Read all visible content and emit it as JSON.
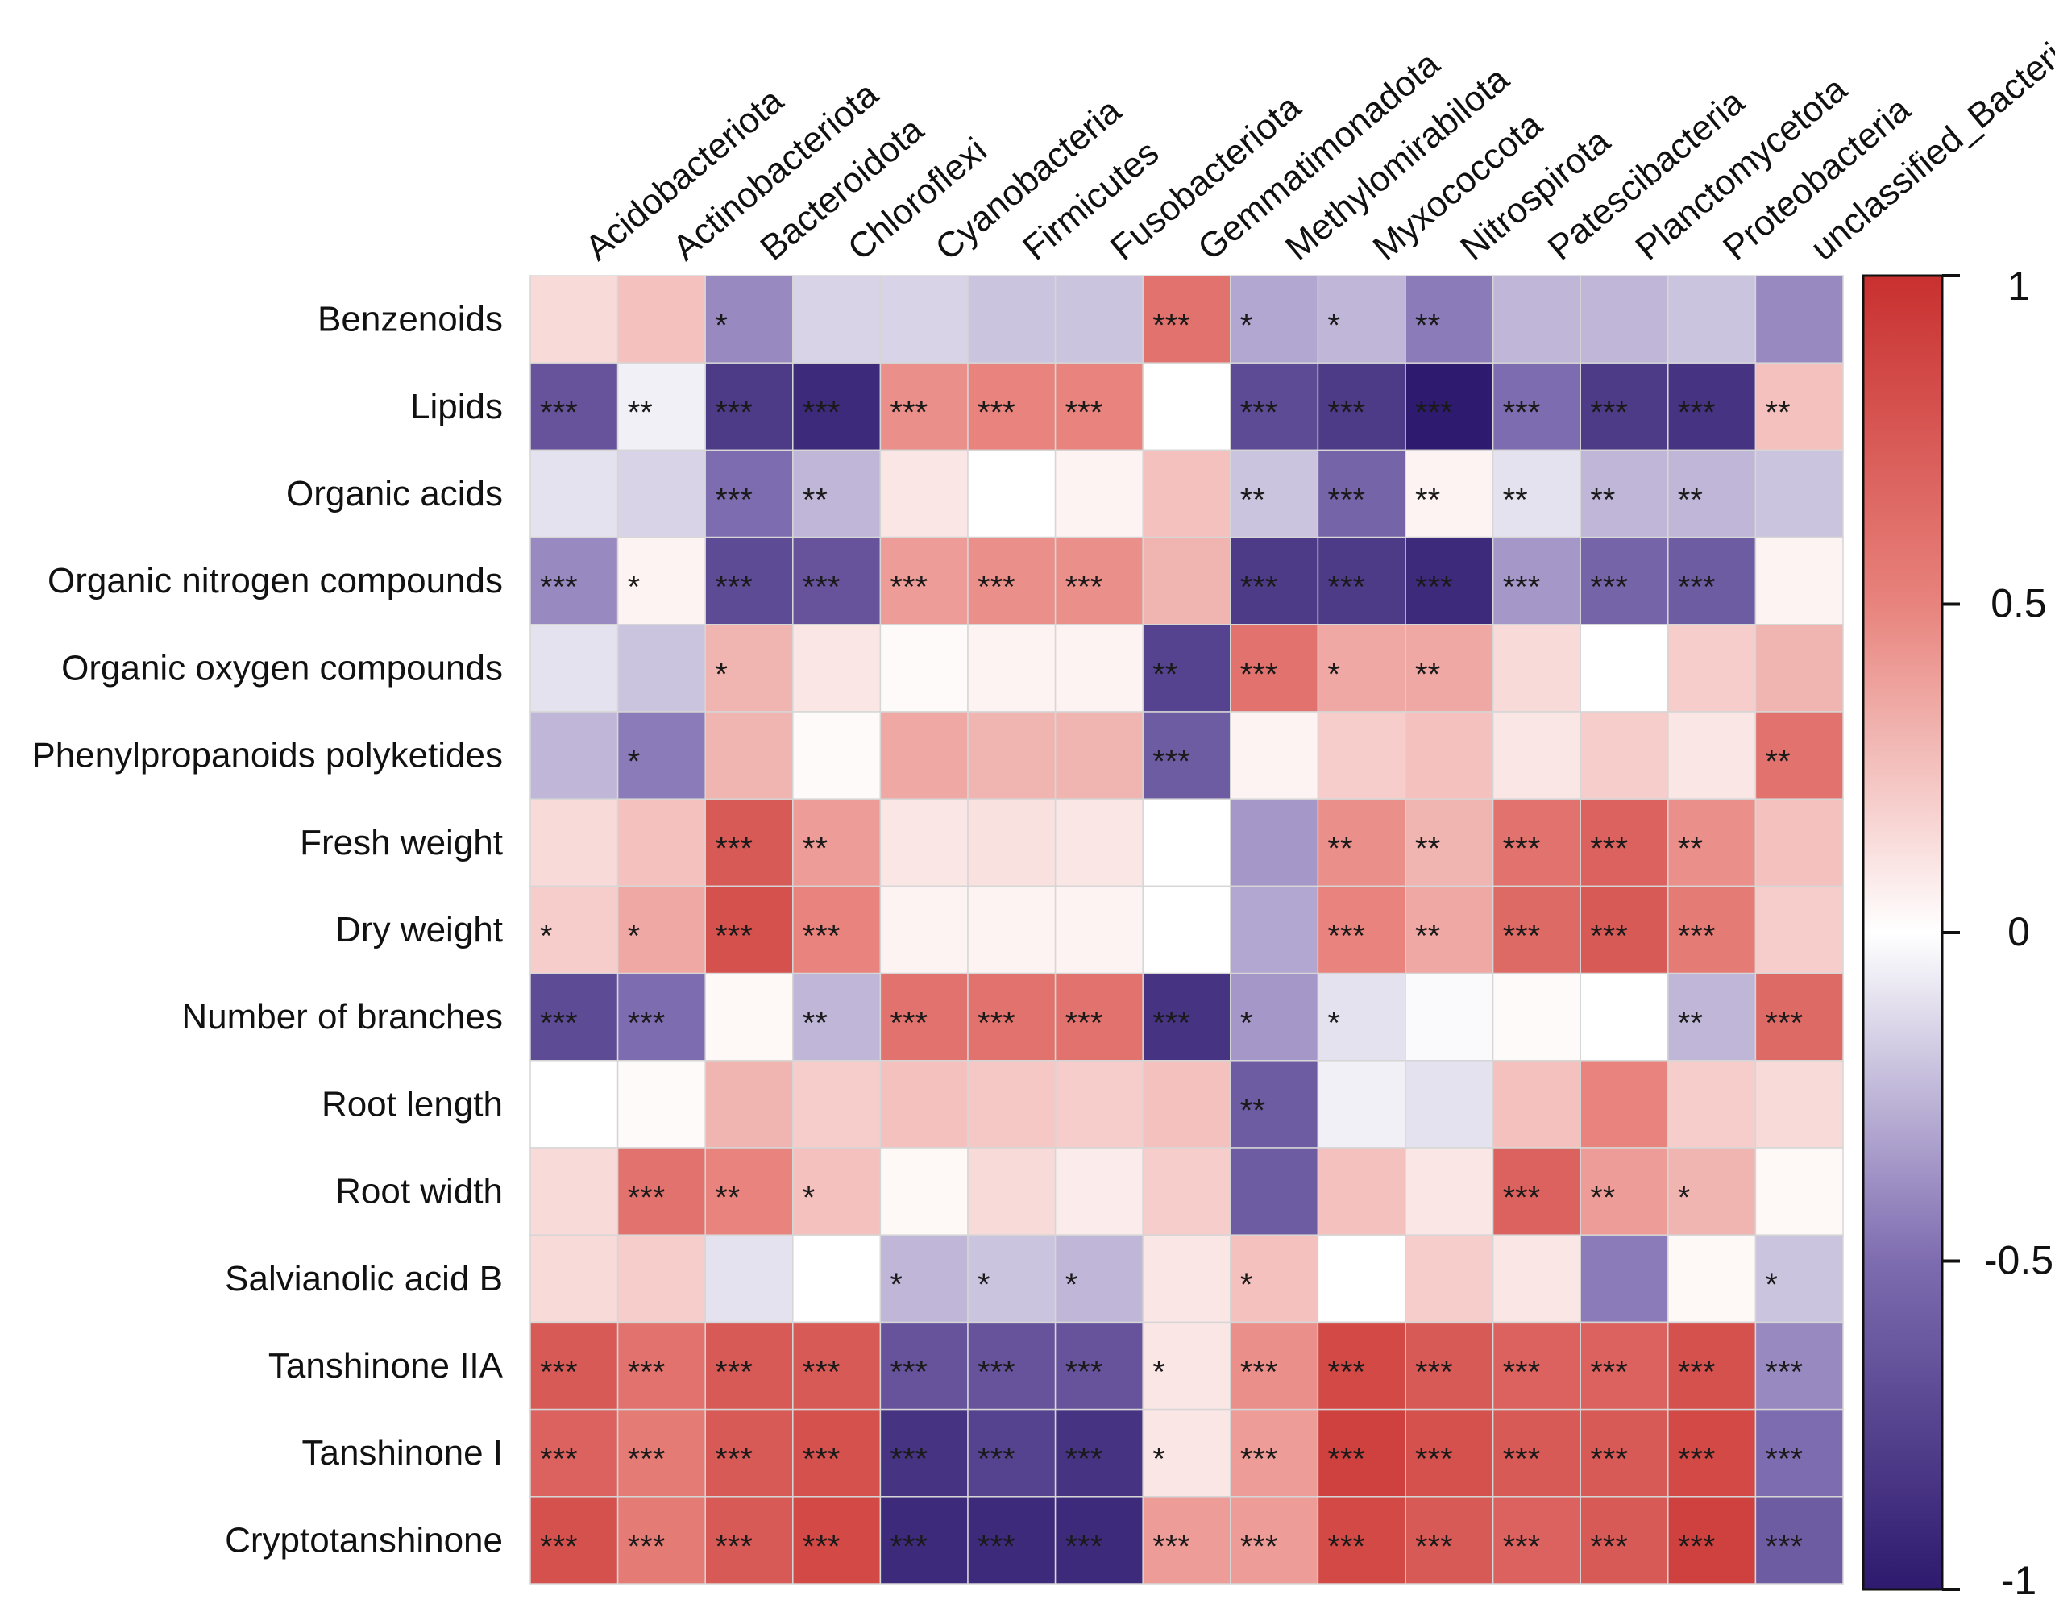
{
  "chart_data": {
    "type": "heatmap",
    "title": "",
    "columns": [
      "Acidobacteriota",
      "Actinobacteriota",
      "Bacteroidota",
      "Chloroflexi",
      "Cyanobacteria",
      "Firmicutes",
      "Fusobacteriota",
      "Gemmatimonadota",
      "Methylomirabilota",
      "Myxococcota",
      "Nitrospirota",
      "Patescibacteria",
      "Planctomycetota",
      "Proteobacteria",
      "unclassified_Bacteria"
    ],
    "rows": [
      "Benzenoids",
      "Lipids",
      "Organic acids",
      "Organic nitrogen compounds",
      "Organic oxygen compounds",
      "Phenylpropanoids polyketides",
      "Fresh weight",
      "Dry weight",
      "Number of branches",
      "Root length",
      "Root width",
      "Salvianolic acid B",
      "Tanshinone IIA",
      "Tanshinone I",
      "Cryptotanshinone"
    ],
    "values": [
      [
        0.15,
        0.25,
        -0.4,
        -0.15,
        -0.15,
        -0.2,
        -0.2,
        0.6,
        -0.3,
        -0.25,
        -0.45,
        -0.25,
        -0.25,
        -0.2,
        -0.4
      ],
      [
        -0.65,
        -0.05,
        -0.8,
        -0.9,
        0.45,
        0.5,
        0.5,
        0,
        -0.7,
        -0.8,
        -1.0,
        -0.5,
        -0.8,
        -0.85,
        0.25
      ],
      [
        -0.1,
        -0.15,
        -0.5,
        -0.25,
        0.1,
        0,
        0.05,
        0.25,
        -0.2,
        -0.55,
        0.05,
        -0.1,
        -0.25,
        -0.25,
        -0.2
      ],
      [
        -0.4,
        0.05,
        -0.7,
        -0.65,
        0.4,
        0.45,
        0.45,
        0.3,
        -0.8,
        -0.8,
        -0.9,
        -0.35,
        -0.55,
        -0.6,
        0.05
      ],
      [
        -0.1,
        -0.2,
        0.3,
        0.1,
        0.02,
        0.05,
        0.05,
        -0.75,
        0.6,
        0.35,
        0.35,
        0.15,
        0,
        0.2,
        0.3
      ],
      [
        -0.25,
        -0.45,
        0.3,
        0.02,
        0.35,
        0.3,
        0.3,
        -0.6,
        0.05,
        0.2,
        0.25,
        0.1,
        0.2,
        0.1,
        0.6
      ],
      [
        0.15,
        0.25,
        0.75,
        0.4,
        0.1,
        0.12,
        0.1,
        0,
        -0.35,
        0.45,
        0.3,
        0.6,
        0.7,
        0.45,
        0.25
      ],
      [
        0.2,
        0.35,
        0.8,
        0.5,
        0.05,
        0.05,
        0.05,
        0,
        -0.3,
        0.5,
        0.35,
        0.65,
        0.75,
        0.55,
        0.2
      ],
      [
        -0.7,
        -0.5,
        0.03,
        -0.25,
        0.6,
        0.6,
        0.6,
        -0.85,
        -0.35,
        -0.1,
        -0.02,
        0.02,
        0,
        -0.25,
        0.65
      ],
      [
        0,
        0.02,
        0.3,
        0.2,
        0.25,
        0.22,
        0.2,
        0.25,
        -0.6,
        -0.05,
        -0.1,
        0.25,
        0.5,
        0.2,
        0.15
      ],
      [
        0.15,
        0.6,
        0.5,
        0.25,
        0.03,
        0.15,
        0.08,
        0.2,
        -0.6,
        0.25,
        0.1,
        0.7,
        0.4,
        0.3,
        0.03
      ],
      [
        0.15,
        0.2,
        -0.1,
        0,
        -0.25,
        -0.2,
        -0.25,
        0.1,
        0.25,
        0,
        0.2,
        0.1,
        -0.45,
        0.03,
        -0.2
      ],
      [
        0.75,
        0.6,
        0.75,
        0.75,
        -0.65,
        -0.65,
        -0.65,
        0.1,
        0.45,
        0.85,
        0.75,
        0.7,
        0.7,
        0.8,
        -0.4
      ],
      [
        0.7,
        0.55,
        0.75,
        0.8,
        -0.85,
        -0.75,
        -0.85,
        0.1,
        0.4,
        0.9,
        0.8,
        0.75,
        0.75,
        0.85,
        -0.5
      ],
      [
        0.8,
        0.55,
        0.75,
        0.85,
        -0.9,
        -0.9,
        -0.9,
        0.4,
        0.4,
        0.85,
        0.75,
        0.7,
        0.75,
        0.9,
        -0.6
      ]
    ],
    "significance": [
      [
        "",
        "",
        "*",
        "",
        "",
        "",
        "",
        "***",
        "*",
        "*",
        "**",
        "",
        "",
        "",
        ""
      ],
      [
        "***",
        "**",
        "***",
        "***",
        "***",
        "***",
        "***",
        "",
        "***",
        "***",
        "***",
        "***",
        "***",
        "***",
        "**"
      ],
      [
        "",
        "",
        "***",
        "**",
        "",
        "",
        "",
        "",
        "**",
        "***",
        "**",
        "**",
        "**",
        "**",
        ""
      ],
      [
        "***",
        "*",
        "***",
        "***",
        "***",
        "***",
        "***",
        "",
        "***",
        "***",
        "***",
        "***",
        "***",
        "***",
        ""
      ],
      [
        "",
        "",
        "*",
        "",
        "",
        "",
        "",
        "**",
        "***",
        "*",
        "**",
        "",
        "",
        "",
        ""
      ],
      [
        "",
        "*",
        "",
        "",
        "",
        "",
        "",
        "***",
        "",
        "",
        "",
        "",
        "",
        "",
        "**"
      ],
      [
        "",
        "",
        "***",
        "**",
        "",
        "",
        "",
        "",
        "",
        "**",
        "**",
        "***",
        "***",
        "**",
        ""
      ],
      [
        "*",
        "*",
        "***",
        "***",
        "",
        "",
        "",
        "",
        "",
        "***",
        "**",
        "***",
        "***",
        "***",
        ""
      ],
      [
        "***",
        "***",
        "",
        "**",
        "***",
        "***",
        "***",
        "***",
        "*",
        "*",
        "",
        "",
        "",
        "**",
        "***"
      ],
      [
        "",
        "",
        "",
        "",
        "",
        "",
        "",
        "",
        "**",
        "",
        "",
        "",
        "",
        "",
        ""
      ],
      [
        "",
        "***",
        "**",
        "*",
        "",
        "",
        "",
        "",
        "",
        "",
        "",
        "***",
        "**",
        "*",
        ""
      ],
      [
        "",
        "",
        "",
        "",
        "*",
        "*",
        "*",
        "",
        "*",
        "",
        "",
        "",
        "",
        "",
        "*"
      ],
      [
        "***",
        "***",
        "***",
        "***",
        "***",
        "***",
        "***",
        "*",
        "***",
        "***",
        "***",
        "***",
        "***",
        "***",
        "***"
      ],
      [
        "***",
        "***",
        "***",
        "***",
        "***",
        "***",
        "***",
        "*",
        "***",
        "***",
        "***",
        "***",
        "***",
        "***",
        "***"
      ],
      [
        "***",
        "***",
        "***",
        "***",
        "***",
        "***",
        "***",
        "***",
        "***",
        "***",
        "***",
        "***",
        "***",
        "***",
        "***"
      ]
    ],
    "colorbar": {
      "range": [
        -1,
        1
      ],
      "ticks": [
        1,
        0.5,
        0,
        -0.5,
        -1
      ],
      "tick_labels": [
        "1",
        "0.5",
        "0",
        "-0.5",
        "-1"
      ],
      "colors": {
        "neg_end": "#2e1a6e",
        "mid_neg": "#7e6cb0",
        "zero": "#ffffff",
        "mid_pos": "#e8837d",
        "pos_end": "#c8302f"
      }
    },
    "xlabel": "",
    "ylabel": ""
  }
}
